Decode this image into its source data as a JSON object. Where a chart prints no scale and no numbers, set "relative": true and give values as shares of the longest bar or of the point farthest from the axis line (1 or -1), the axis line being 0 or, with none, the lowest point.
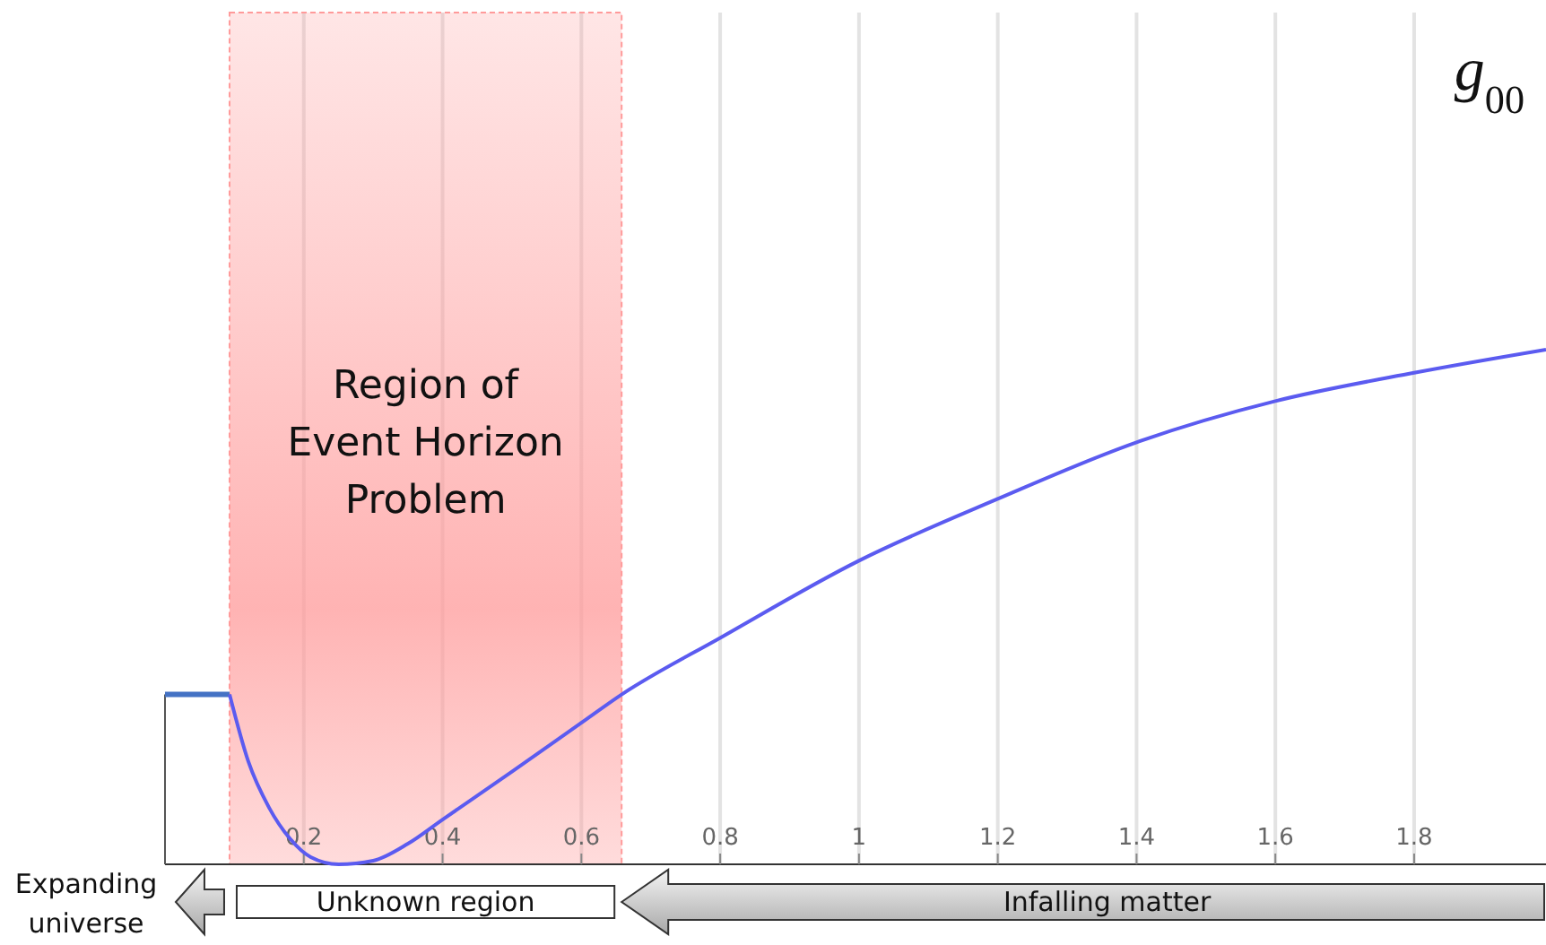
{
  "chart_data": {
    "type": "line",
    "title": "g$_{00}$",
    "relative": true,
    "xlim": [
      0,
      1.99
    ],
    "xticks": [
      0.2,
      0.4,
      0.6,
      0.8,
      1,
      1.2,
      1.4,
      1.6,
      1.8
    ],
    "series": [
      {
        "color": "#4472c4",
        "x": [
          0,
          0.093
        ],
        "values": [
          0.33,
          0.33
        ]
      },
      {
        "color": "#5b5bf0",
        "x": [
          0.093,
          0.12,
          0.15,
          0.18,
          0.21,
          0.25,
          0.3,
          0.35,
          0.4,
          0.5,
          0.6,
          0.658,
          0.8,
          1,
          1.2,
          1.4,
          1.6,
          1.8,
          1.99
        ],
        "values": [
          0.33,
          0.2,
          0.11,
          0.05,
          0.014,
          0,
          0.007,
          0.04,
          0.087,
          0.18,
          0.275,
          0.33,
          0.44,
          0.59,
          0.71,
          0.82,
          0.9,
          0.955,
          1
        ]
      }
    ],
    "bands": [
      {
        "axis": "x",
        "from": 0.093,
        "to": 0.658,
        "label": "Region of Event Horizon Problem",
        "color": "#ff9a9a"
      }
    ],
    "grid": "x",
    "marker": "none",
    "line_style": "solid",
    "annotations": [
      "Expanding universe",
      "Unknown region",
      "Infalling matter"
    ]
  }
}
